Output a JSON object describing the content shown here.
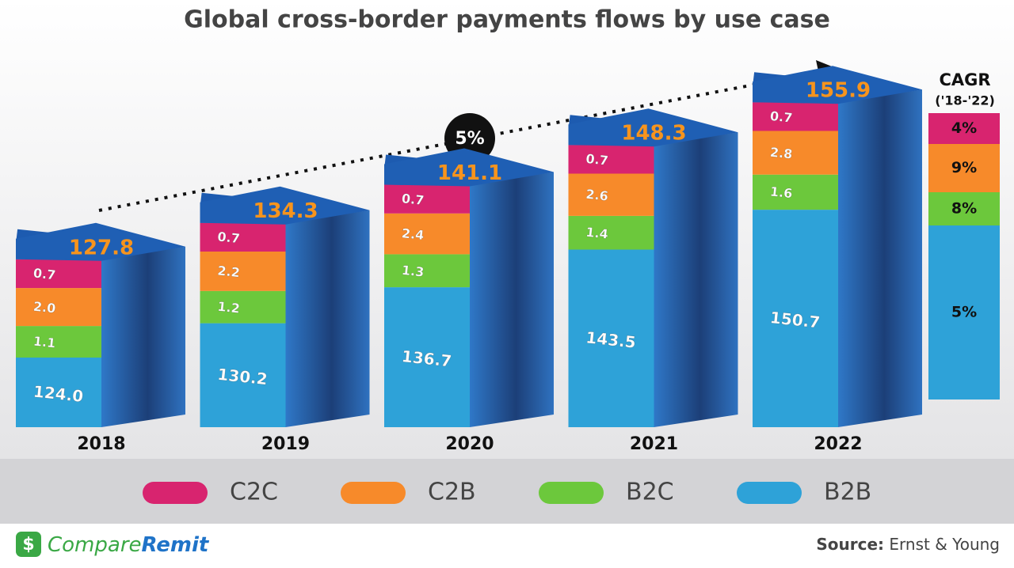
{
  "chart_data": {
    "type": "bar3d_stacked",
    "title": "Global cross-border payments flows by use case",
    "categories": [
      "2018",
      "2019",
      "2020",
      "2021",
      "2022"
    ],
    "totals": [
      127.8,
      134.3,
      141.1,
      148.3,
      155.9
    ],
    "series": [
      {
        "name": "C2C",
        "color": "#d8246f",
        "values": [
          0.7,
          0.7,
          0.7,
          0.7,
          0.7
        ],
        "value_labels": [
          "0.7",
          "0.7",
          "0.7",
          "0.7",
          "0.7"
        ],
        "cagr": {
          "value": 4,
          "label": "4%"
        }
      },
      {
        "name": "C2B",
        "color": "#f78a2a",
        "values": [
          2.0,
          2.2,
          2.4,
          2.6,
          2.8
        ],
        "value_labels": [
          "2.0",
          "2.2",
          "2.4",
          "2.6",
          "2.8"
        ],
        "cagr": {
          "value": 9,
          "label": "9%"
        }
      },
      {
        "name": "B2C",
        "color": "#6cc83c",
        "values": [
          1.1,
          1.2,
          1.3,
          1.4,
          1.6
        ],
        "value_labels": [
          "1.1",
          "1.2",
          "1.3",
          "1.4",
          "1.6"
        ],
        "cagr": {
          "value": 8,
          "label": "8%"
        }
      },
      {
        "name": "B2B",
        "color": "#2ea2d8",
        "values": [
          124.0,
          130.2,
          136.7,
          143.5,
          150.7
        ],
        "value_labels": [
          "124.0",
          "130.2",
          "136.7",
          "143.5",
          "150.7"
        ],
        "cagr": {
          "value": 5,
          "label": "5%"
        }
      }
    ],
    "cagr_title": "CAGR",
    "cagr_period": "('18-'22)",
    "annotation": "5%"
  },
  "footer": {
    "logo_first": "Compare",
    "logo_second": "Remit",
    "source_label": "Source:",
    "source": "Ernst & Young"
  }
}
